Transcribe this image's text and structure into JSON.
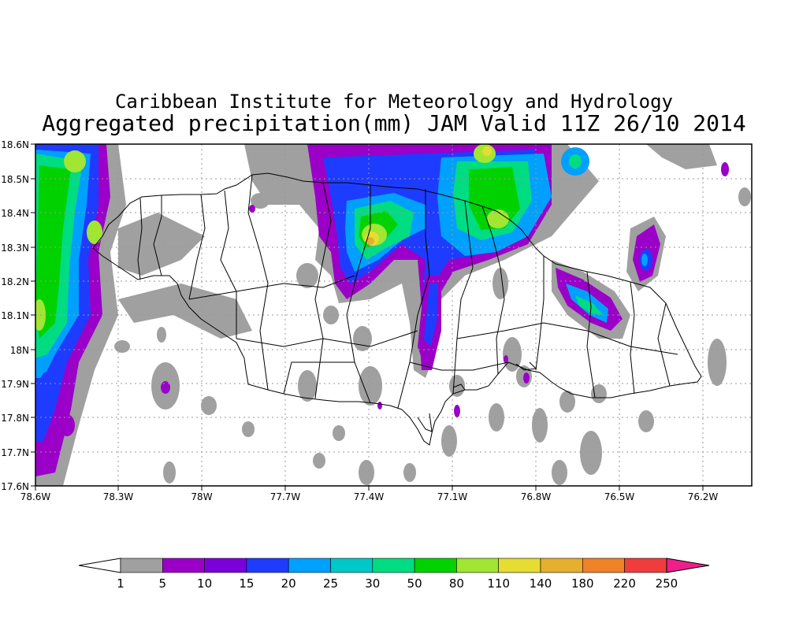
{
  "header": {
    "title_line1": "Caribbean Institute for Meteorology and Hydrology",
    "title_line2": "Aggregated precipitation(mm) JAM Valid 11Z 26/10 2014"
  },
  "map": {
    "region": "Jamaica",
    "lon_ticks": [
      "78.6W",
      "78.3W",
      "78W",
      "77.7W",
      "77.4W",
      "77.1W",
      "76.8W",
      "76.5W",
      "76.2W"
    ],
    "lat_ticks": [
      "18.6N",
      "18.5N",
      "18.4N",
      "18.3N",
      "18.2N",
      "18.1N",
      "18N",
      "17.9N",
      "17.8N",
      "17.7N",
      "17.6N"
    ],
    "grid": "dotted"
  },
  "colorbar": {
    "labels": [
      "1",
      "5",
      "10",
      "15",
      "20",
      "25",
      "30",
      "50",
      "80",
      "110",
      "140",
      "180",
      "220",
      "250"
    ],
    "colors": [
      "#a0a0a0",
      "#9a00c8",
      "#7a00dc",
      "#1e3cff",
      "#00a0ff",
      "#00c8c8",
      "#00dc82",
      "#00d200",
      "#a0e632",
      "#e6dc32",
      "#e6af2d",
      "#f08228",
      "#f03c3c",
      "#f01e8c"
    ],
    "under_color": "#ffffff",
    "over_color": "#f01e8c"
  }
}
